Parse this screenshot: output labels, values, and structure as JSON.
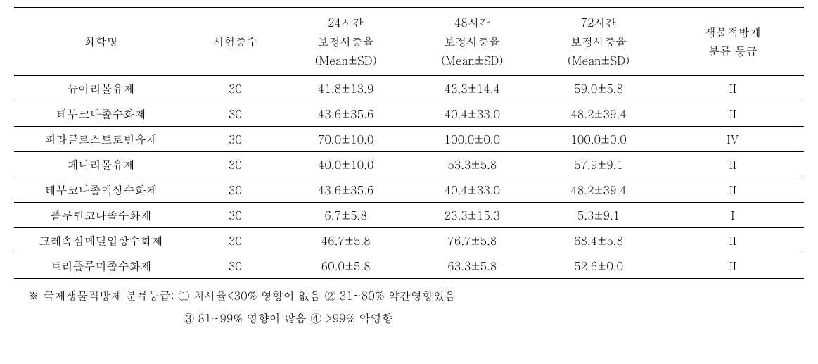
{
  "headers": {
    "name": "화학명",
    "count": "시험충수",
    "h24_l1": "24시간",
    "h24_l2": "보정사충율",
    "h24_l3": "(Mean±SD)",
    "h48_l1": "48시간",
    "h48_l2": "보정사충율",
    "h48_l3": "(Mean±SD)",
    "h72_l1": "72시간",
    "h72_l2": "보정사충율",
    "h72_l3": "(Mean±SD)",
    "grade_l1": "생물적방제",
    "grade_l2": "분류 등급"
  },
  "rows": [
    {
      "name": "뉴아리몰유제",
      "count": "30",
      "h24": "41.8±13.9",
      "h48": "43.3±14.4",
      "h72": "59.0±5.8",
      "grade": "II"
    },
    {
      "name": "테부코나졸수화제",
      "count": "30",
      "h24": "43.6±35.6",
      "h48": "40.4±33.0",
      "h72": "48.2±39.4",
      "grade": "II"
    },
    {
      "name": "피라클로스트로빈유제",
      "count": "30",
      "h24": "70.0±10.0",
      "h48": "100.0±0.0",
      "h72": "100.0±0.0",
      "grade": "IV"
    },
    {
      "name": "페나리몰유제",
      "count": "30",
      "h24": "40.0±10.0",
      "h48": "53.3±5.8",
      "h72": "57.9±9.1",
      "grade": "II"
    },
    {
      "name": "테부코나졸액상수화제",
      "count": "30",
      "h24": "43.6±35.6",
      "h48": "40.4±33.0",
      "h72": "48.2±39.4",
      "grade": "II"
    },
    {
      "name": "플루퀸코나졸수화제",
      "count": "30",
      "h24": "6.7±5.8",
      "h48": "23.3±15.3",
      "h72": "5.3±9.1",
      "grade": "I"
    },
    {
      "name": "크레속심메틸입상수화제",
      "count": "30",
      "h24": "46.7±5.8",
      "h48": "76.7±5.8",
      "h72": "68.4±5.8",
      "grade": "II"
    },
    {
      "name": "트리플루미졸수화제",
      "count": "30",
      "h24": "60.0±5.8",
      "h48": "63.3±5.8",
      "h72": "52.6±0.0",
      "grade": "II"
    }
  ],
  "footnote": {
    "line1": "※  국제생물적방제 분류등급: ① 치사율<30% 영향이 없음   ② 31~80% 약간영향있음",
    "line2": "③ 81~99% 영향이 많음     ④ >99% 악영향"
  }
}
